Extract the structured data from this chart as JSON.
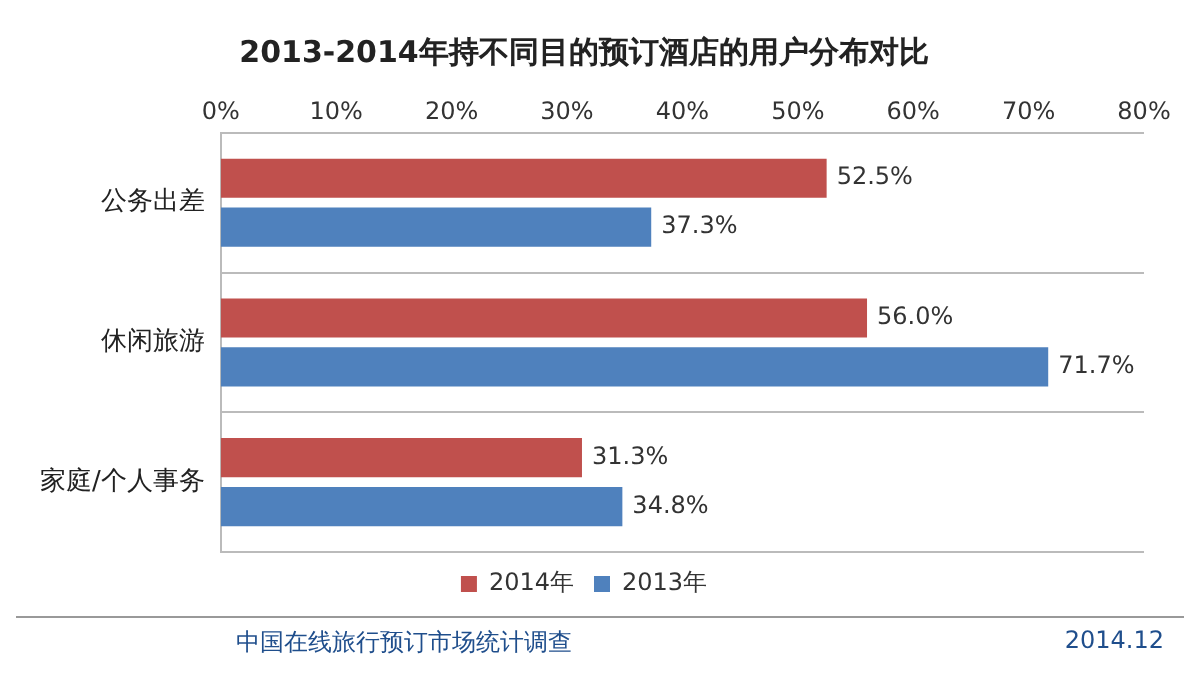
{
  "chart_data": {
    "type": "bar",
    "orientation": "horizontal",
    "title": "2013-2014年持不同目的预订酒店的用户分布对比",
    "categories": [
      "公务出差",
      "休闲旅游",
      "家庭/个人事务"
    ],
    "series": [
      {
        "name": "2014年",
        "color": "#c0504d",
        "values": [
          52.5,
          56.0,
          31.3
        ],
        "value_labels": [
          "52.5%",
          "56.0%",
          "31.3%"
        ]
      },
      {
        "name": "2013年",
        "color": "#4f81bd",
        "values": [
          37.3,
          71.7,
          34.8
        ],
        "value_labels": [
          "37.3%",
          "71.7%",
          "34.8%"
        ]
      }
    ],
    "xlim": [
      0,
      80
    ],
    "xticks": [
      {
        "value": 0,
        "label": "0%"
      },
      {
        "value": 10,
        "label": "10%"
      },
      {
        "value": 20,
        "label": "20%"
      },
      {
        "value": 30,
        "label": "30%"
      },
      {
        "value": 40,
        "label": "40%"
      },
      {
        "value": 50,
        "label": "50%"
      },
      {
        "value": 60,
        "label": "60%"
      },
      {
        "value": 70,
        "label": "70%"
      },
      {
        "value": 80,
        "label": "80%"
      }
    ],
    "grid": "y",
    "legend": "bottom",
    "annotations": [
      "中国在线旅行预订市场统计调查",
      "2014.12"
    ]
  }
}
